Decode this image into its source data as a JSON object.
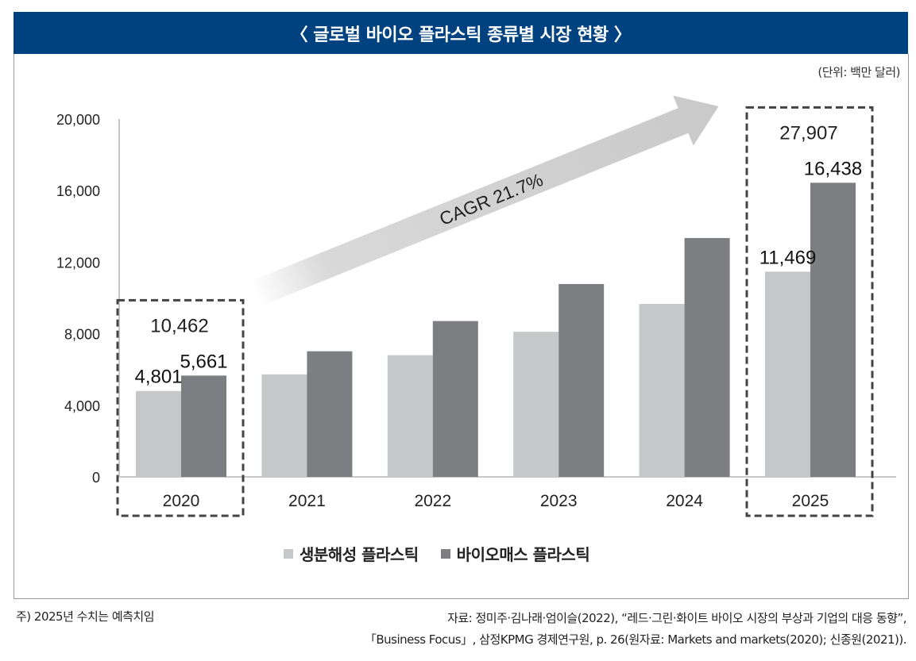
{
  "header": {
    "title": "〈 글로벌 바이오 플라스틱 종류별 시장 현황 〉",
    "title_bg": "#00427f",
    "unit": "(단위: 백만 달러)"
  },
  "chart_data": {
    "type": "bar",
    "title": "글로벌 바이오 플라스틱 종류별 시장 현황",
    "unit": "백만 달러",
    "xlabel": "",
    "ylabel": "",
    "categories": [
      "2020",
      "2021",
      "2022",
      "2023",
      "2024",
      "2025"
    ],
    "series": [
      {
        "name": "생분해성 플라스틱",
        "color": "#c6c7c9",
        "values": [
          4801,
          5730,
          6800,
          8110,
          9670,
          11469
        ]
      },
      {
        "name": "바이오매스 플라스틱",
        "color": "#7d7e82",
        "values": [
          5661,
          7020,
          8710,
          10780,
          13350,
          16438
        ]
      }
    ],
    "ylim": [
      0,
      20000
    ],
    "yticks": [
      0,
      4000,
      8000,
      12000,
      16000,
      20000
    ],
    "ytick_labels": [
      "0",
      "4,000",
      "8,000",
      "12,000",
      "16,000",
      "20,000"
    ],
    "grid": false,
    "legend_position": "bottom",
    "data_labels": [
      {
        "category": "2020",
        "series": 0,
        "text": "4,801"
      },
      {
        "category": "2020",
        "series": 1,
        "text": "5,661"
      },
      {
        "category": "2025",
        "series": 0,
        "text": "11,469"
      },
      {
        "category": "2025",
        "series": 1,
        "text": "16,438"
      }
    ],
    "totals": [
      {
        "category": "2020",
        "text": "10,462",
        "highlighted": true
      },
      {
        "category": "2025",
        "text": "27,907",
        "highlighted": true
      }
    ],
    "annotations": [
      {
        "type": "arrow",
        "text": "CAGR 21.7%",
        "from_category": "2020",
        "to_category": "2025"
      }
    ]
  },
  "legend": {
    "items": [
      {
        "label": "생분해성 플라스틱",
        "color": "#c6c7c9"
      },
      {
        "label": "바이오매스 플라스틱",
        "color": "#7d7e82"
      }
    ]
  },
  "footer": {
    "note": "주) 2025년 수치는 예측치임",
    "source_line1": "자료: 정미주·김나래·엄이슬(2022), “레드·그린·화이트 바이오 시장의 부상과 기업의 대응 동향”,",
    "source_line2": "「Business Focus」, 삼정KPMG 경제연구원, p. 26(원자료: Markets and markets(2020); 신종원(2021))."
  }
}
